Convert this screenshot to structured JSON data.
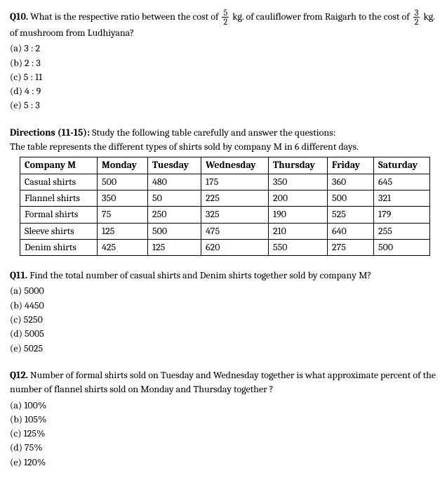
{
  "q10": {
    "label": "Q10.",
    "text_part1": "What is the respective ratio between the cost of ",
    "frac1_num": "5",
    "frac1_den": "2",
    "text_part2": " kg. of cauliflower from Raigarh to the cost of ",
    "frac2_num": "3",
    "frac2_den": "2",
    "text_part3": " kg. of mushroom from Ludhiyana?",
    "options": {
      "a": "(a) 3 : 2",
      "b": "(b) 2 : 3",
      "c": "(c) 5 : 11",
      "d": "(d) 4 : 9",
      "e": "(e) 5 : 3"
    }
  },
  "directions": {
    "label": "Directions (11-15):",
    "text": " Study the following table carefully and answer the questions:",
    "subtext": "The table represents the different types of shirts sold by company M in 6 different days."
  },
  "table": {
    "headers": [
      "Company M",
      "Monday",
      "Tuesday",
      "Wednesday",
      "Thursday",
      "Friday",
      "Saturday"
    ],
    "rows": [
      [
        "Casual shirts",
        "500",
        "480",
        "175",
        "350",
        "360",
        "645"
      ],
      [
        "Flannel shirts",
        "350",
        "50",
        "225",
        "200",
        "500",
        "321"
      ],
      [
        "Formal shirts",
        "75",
        "250",
        "325",
        "190",
        "525",
        "179"
      ],
      [
        "Sleeve shirts",
        "125",
        "500",
        "475",
        "210",
        "640",
        "255"
      ],
      [
        "Denim shirts",
        "425",
        "125",
        "620",
        "550",
        "275",
        "500"
      ]
    ],
    "col_widths": [
      "110px",
      "72px",
      "76px",
      "96px",
      "84px",
      "66px",
      "80px"
    ]
  },
  "q11": {
    "label": "Q11.",
    "text": " Find the total number of casual shirts and Denim shirts together sold by company M?",
    "options": {
      "a": "(a) 5000",
      "b": "(b) 4450",
      "c": "(c) 5250",
      "d": "(d) 5005",
      "e": "(e) 5025"
    }
  },
  "q12": {
    "label": "Q12.",
    "text": " Number of formal shirts sold on Tuesday and Wednesday together is what approximate percent of the number of flannel shirts sold on Monday and Thursday together ?",
    "options": {
      "a": "(a) 100%",
      "b": "(b) 105%",
      "c": "(c) 125%",
      "d": "(d) 75%",
      "e": "(e) 120%"
    }
  }
}
